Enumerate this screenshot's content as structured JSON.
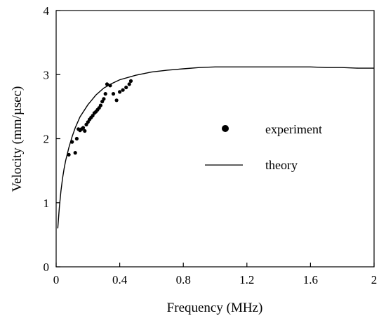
{
  "chart_data": {
    "type": "scatter",
    "title": "",
    "xlabel": "Frequency (MHz)",
    "ylabel": "Velocity (mm/µsec)",
    "xlim": [
      0,
      2
    ],
    "ylim": [
      0,
      4
    ],
    "x_ticks": [
      {
        "value": 0,
        "label": "0"
      },
      {
        "value": 0.4,
        "label": "0.4"
      },
      {
        "value": 0.8,
        "label": "0.8"
      },
      {
        "value": 1.2,
        "label": "1.2"
      },
      {
        "value": 1.6,
        "label": "1.6"
      },
      {
        "value": 2,
        "label": "2"
      }
    ],
    "y_ticks": [
      {
        "value": 0,
        "label": "0"
      },
      {
        "value": 1,
        "label": "1"
      },
      {
        "value": 2,
        "label": "2"
      },
      {
        "value": 3,
        "label": "3"
      },
      {
        "value": 4,
        "label": "4"
      }
    ],
    "grid": false,
    "legend_position": "center-right",
    "series": [
      {
        "name": "experiment",
        "kind": "scatter",
        "color": "#000000",
        "points": [
          [
            0.08,
            1.75
          ],
          [
            0.1,
            1.95
          ],
          [
            0.12,
            1.78
          ],
          [
            0.13,
            2.0
          ],
          [
            0.14,
            2.15
          ],
          [
            0.15,
            2.13
          ],
          [
            0.16,
            2.15
          ],
          [
            0.17,
            2.17
          ],
          [
            0.18,
            2.12
          ],
          [
            0.19,
            2.22
          ],
          [
            0.2,
            2.26
          ],
          [
            0.21,
            2.3
          ],
          [
            0.22,
            2.33
          ],
          [
            0.23,
            2.36
          ],
          [
            0.24,
            2.4
          ],
          [
            0.25,
            2.42
          ],
          [
            0.26,
            2.45
          ],
          [
            0.27,
            2.48
          ],
          [
            0.28,
            2.52
          ],
          [
            0.29,
            2.58
          ],
          [
            0.3,
            2.62
          ],
          [
            0.31,
            2.7
          ],
          [
            0.32,
            2.85
          ],
          [
            0.34,
            2.83
          ],
          [
            0.36,
            2.7
          ],
          [
            0.38,
            2.6
          ],
          [
            0.4,
            2.73
          ],
          [
            0.42,
            2.76
          ],
          [
            0.44,
            2.8
          ],
          [
            0.46,
            2.85
          ],
          [
            0.47,
            2.9
          ]
        ]
      },
      {
        "name": "theory",
        "kind": "line",
        "color": "#000000",
        "points": [
          [
            0.01,
            0.6
          ],
          [
            0.02,
            0.92
          ],
          [
            0.03,
            1.18
          ],
          [
            0.04,
            1.38
          ],
          [
            0.05,
            1.53
          ],
          [
            0.06,
            1.66
          ],
          [
            0.08,
            1.86
          ],
          [
            0.1,
            2.03
          ],
          [
            0.12,
            2.17
          ],
          [
            0.15,
            2.34
          ],
          [
            0.2,
            2.53
          ],
          [
            0.25,
            2.68
          ],
          [
            0.3,
            2.79
          ],
          [
            0.35,
            2.86
          ],
          [
            0.4,
            2.92
          ],
          [
            0.5,
            2.99
          ],
          [
            0.6,
            3.04
          ],
          [
            0.7,
            3.07
          ],
          [
            0.8,
            3.09
          ],
          [
            0.9,
            3.11
          ],
          [
            1.0,
            3.12
          ],
          [
            1.1,
            3.12
          ],
          [
            1.2,
            3.12
          ],
          [
            1.3,
            3.12
          ],
          [
            1.4,
            3.12
          ],
          [
            1.5,
            3.12
          ],
          [
            1.6,
            3.12
          ],
          [
            1.7,
            3.11
          ],
          [
            1.8,
            3.11
          ],
          [
            1.9,
            3.1
          ],
          [
            2.0,
            3.1
          ]
        ]
      }
    ]
  }
}
